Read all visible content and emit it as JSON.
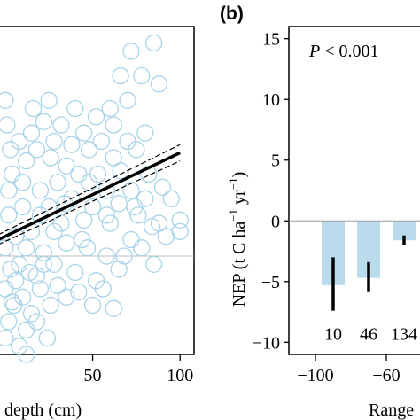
{
  "chart_data": [
    {
      "panel": "a",
      "type": "scatter",
      "xlabel": "depth (cm)",
      "xticks": [
        "50",
        "100"
      ],
      "xlim": [
        -4,
        108
      ],
      "ylim": [
        -6,
        14
      ],
      "colors": {
        "points": "#a8d3e8",
        "fit_line": "#000000",
        "zero_line": "#bdbdbd"
      },
      "fit": {
        "x": [
          -4,
          100
        ],
        "y": [
          1.0,
          6.3
        ]
      },
      "fit_ci": {
        "x": [
          -4,
          100
        ],
        "upper": [
          1.3,
          6.8
        ],
        "lower": [
          0.7,
          5.8
        ]
      },
      "points": [
        [
          85,
          13
        ],
        [
          72,
          12.5
        ],
        [
          78,
          11
        ],
        [
          88,
          10.5
        ],
        [
          66,
          11
        ],
        [
          60,
          9
        ],
        [
          52,
          8.5
        ],
        [
          40,
          9
        ],
        [
          32,
          8
        ],
        [
          22,
          8.2
        ],
        [
          15,
          7.5
        ],
        [
          8,
          7
        ],
        [
          3,
          6.5
        ],
        [
          1,
          8
        ],
        [
          0,
          9.5
        ],
        [
          4,
          5
        ],
        [
          12,
          5.8
        ],
        [
          18,
          6.5
        ],
        [
          26,
          6
        ],
        [
          30,
          4.5
        ],
        [
          35,
          5.5
        ],
        [
          42,
          5
        ],
        [
          48,
          6.5
        ],
        [
          55,
          7
        ],
        [
          62,
          6
        ],
        [
          70,
          7
        ],
        [
          75,
          6.5
        ],
        [
          82,
          5
        ],
        [
          90,
          4.2
        ],
        [
          95,
          3.5
        ],
        [
          100,
          2.2
        ],
        [
          100,
          1.5
        ],
        [
          88,
          2
        ],
        [
          80,
          3.5
        ],
        [
          72,
          4
        ],
        [
          65,
          3.2
        ],
        [
          58,
          4
        ],
        [
          50,
          3
        ],
        [
          45,
          2.2
        ],
        [
          38,
          3.5
        ],
        [
          32,
          2
        ],
        [
          25,
          3
        ],
        [
          20,
          2.5
        ],
        [
          15,
          1.5
        ],
        [
          10,
          3
        ],
        [
          6,
          1.2
        ],
        [
          2,
          2.5
        ],
        [
          0,
          0.5
        ],
        [
          3,
          -0.8
        ],
        [
          8,
          -0.5
        ],
        [
          12,
          0.5
        ],
        [
          18,
          -1.2
        ],
        [
          22,
          0.2
        ],
        [
          28,
          -0.5
        ],
        [
          35,
          0.8
        ],
        [
          40,
          -1
        ],
        [
          47,
          0.5
        ],
        [
          52,
          -1.5
        ],
        [
          58,
          0
        ],
        [
          65,
          -0.8
        ],
        [
          72,
          1
        ],
        [
          78,
          0.5
        ],
        [
          85,
          -0.5
        ],
        [
          92,
          1.2
        ],
        [
          0,
          -2
        ],
        [
          5,
          -3
        ],
        [
          10,
          -2.5
        ],
        [
          15,
          -3.5
        ],
        [
          20,
          -2
        ],
        [
          26,
          -3
        ],
        [
          30,
          -1.8
        ],
        [
          2,
          -4
        ],
        [
          8,
          -5.5
        ],
        [
          12,
          -4.5
        ],
        [
          18,
          -4
        ],
        [
          24,
          -5
        ],
        [
          0,
          -5
        ],
        [
          6,
          -1.5
        ],
        [
          14,
          -1
        ],
        [
          28,
          1.5
        ],
        [
          44,
          1
        ],
        [
          60,
          2
        ],
        [
          68,
          0
        ],
        [
          76,
          2.5
        ],
        [
          84,
          1.8
        ],
        [
          35,
          -2.5
        ],
        [
          42,
          -2.2
        ],
        [
          50,
          -3
        ],
        [
          56,
          -2
        ],
        [
          62,
          -3.2
        ],
        [
          45,
          7.5
        ],
        [
          38,
          6.8
        ],
        [
          28,
          7
        ],
        [
          20,
          4
        ],
        [
          10,
          4.5
        ],
        [
          2,
          4
        ],
        [
          16,
          9
        ],
        [
          25,
          9.5
        ],
        [
          62,
          8
        ],
        [
          70,
          9.5
        ],
        [
          48,
          4.5
        ],
        [
          53,
          5
        ],
        [
          58,
          2.5
        ],
        [
          66,
          5.2
        ],
        [
          74,
          3
        ],
        [
          80,
          7.5
        ],
        [
          34,
          3.2
        ],
        [
          4,
          -2.8
        ],
        [
          22,
          -0.5
        ],
        [
          12,
          -6
        ]
      ]
    },
    {
      "panel": "b",
      "type": "bar",
      "panel_label": "(b)",
      "annotation_p": "P",
      "annotation_rest": " < 0.001",
      "ylabel_main": "NEP (t C ha",
      "ylabel_sup1": "−1",
      "ylabel_mid": " yr",
      "ylabel_sup2": "−1",
      "ylabel_end": ")",
      "xlabel": "Range",
      "xticks": [
        "−100",
        "−60"
      ],
      "xlim": [
        -115,
        -35
      ],
      "ylim": [
        -11,
        16
      ],
      "yticks": [
        "15",
        "10",
        "5",
        "0",
        "−5",
        "−10"
      ],
      "colors": {
        "bar": "#b9dbec",
        "error": "#000000"
      },
      "categories": [
        "−90",
        "−70",
        "−50"
      ],
      "values": [
        -5.3,
        -4.7,
        -1.6
      ],
      "error_low": [
        -7.4,
        -5.8,
        -2.0
      ],
      "error_high": [
        -3.0,
        -3.4,
        -1.2
      ],
      "n_labels": [
        "10",
        "46",
        "134"
      ]
    }
  ]
}
